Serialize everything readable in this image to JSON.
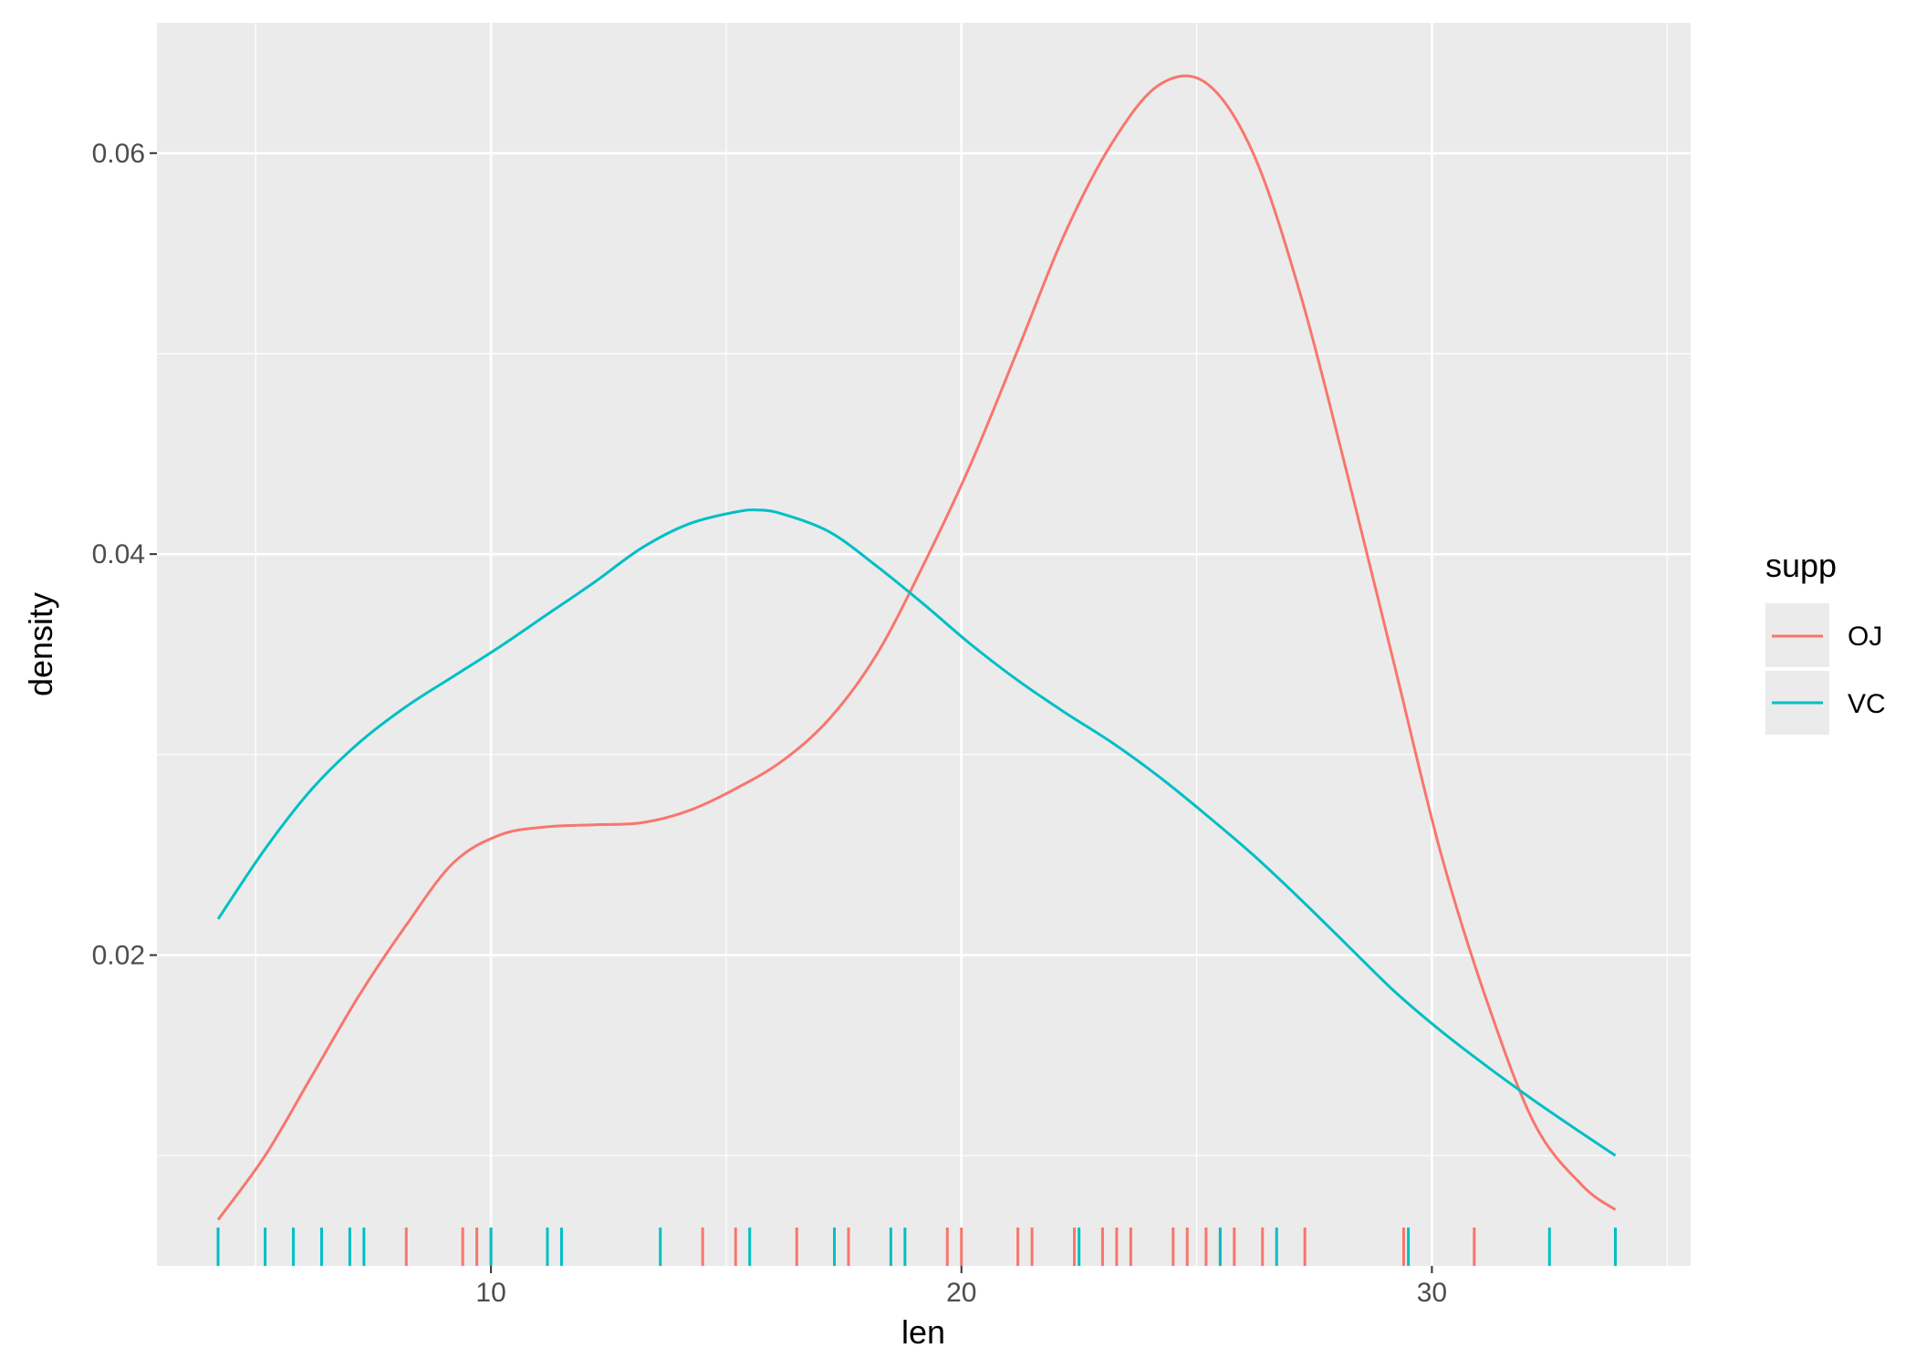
{
  "chart_data": {
    "type": "line",
    "subtype": "density",
    "title": "",
    "xlabel": "len",
    "ylabel": "density",
    "xlim": [
      2.9,
      35.5
    ],
    "ylim": [
      0.0045,
      0.0665
    ],
    "x_ticks": [
      10,
      20,
      30
    ],
    "x_tick_labels": [
      "10",
      "20",
      "30"
    ],
    "y_ticks": [
      0.02,
      0.04,
      0.06
    ],
    "y_tick_labels": [
      "0.02",
      "0.04",
      "0.06"
    ],
    "grid": true,
    "legend": {
      "title": "supp",
      "position": "right",
      "entries": [
        {
          "label": "OJ",
          "color": "#F8766D"
        },
        {
          "label": "VC",
          "color": "#00BFC4"
        }
      ]
    },
    "series": [
      {
        "name": "OJ",
        "color": "#F8766D",
        "x": [
          4.2,
          5.2,
          6.2,
          7.2,
          8.2,
          9.2,
          10.2,
          11.2,
          12.2,
          13.2,
          14.2,
          15.2,
          16.2,
          17.2,
          18.2,
          19.2,
          20.2,
          21.2,
          22.2,
          23.2,
          24.2,
          25.2,
          26.2,
          27.2,
          28.2,
          29.2,
          30.2,
          31.2,
          32.2,
          33.2,
          33.9
        ],
        "y": [
          0.0068,
          0.01,
          0.014,
          0.018,
          0.0215,
          0.0246,
          0.026,
          0.0264,
          0.0265,
          0.0266,
          0.0272,
          0.0283,
          0.0297,
          0.0318,
          0.035,
          0.0395,
          0.0445,
          0.0502,
          0.056,
          0.0605,
          0.0634,
          0.0635,
          0.06,
          0.053,
          0.044,
          0.0345,
          0.025,
          0.0175,
          0.0115,
          0.0085,
          0.0073
        ]
      },
      {
        "name": "VC",
        "color": "#00BFC4",
        "x": [
          4.2,
          5.2,
          6.2,
          7.2,
          8.2,
          9.2,
          10.2,
          11.2,
          12.2,
          13.2,
          14.2,
          15.2,
          15.7,
          16.2,
          17.2,
          18.2,
          19.2,
          20.2,
          21.2,
          22.2,
          23.2,
          24.2,
          25.2,
          26.2,
          27.2,
          28.2,
          29.2,
          30.2,
          31.2,
          32.2,
          33.2,
          33.9
        ],
        "y": [
          0.0218,
          0.0253,
          0.0283,
          0.0306,
          0.0324,
          0.0339,
          0.0354,
          0.037,
          0.0386,
          0.0403,
          0.0415,
          0.0421,
          0.0422,
          0.042,
          0.0411,
          0.0394,
          0.0375,
          0.0355,
          0.0337,
          0.0321,
          0.0306,
          0.0289,
          0.027,
          0.025,
          0.0228,
          0.0205,
          0.0182,
          0.0162,
          0.0144,
          0.0127,
          0.0111,
          0.01
        ]
      }
    ],
    "rug": {
      "OJ": [
        8.2,
        9.4,
        9.7,
        10.0,
        14.5,
        15.2,
        16.5,
        17.6,
        19.7,
        20.0,
        21.2,
        21.5,
        22.4,
        23.0,
        23.3,
        23.6,
        24.5,
        24.8,
        25.2,
        25.5,
        25.8,
        26.4,
        27.3,
        29.4,
        30.9
      ],
      "VC": [
        4.2,
        5.2,
        5.8,
        6.4,
        7.0,
        7.3,
        10.0,
        11.2,
        11.5,
        13.6,
        15.5,
        17.3,
        18.5,
        18.8,
        22.5,
        25.5,
        26.7,
        29.5,
        32.5,
        33.9
      ]
    }
  }
}
